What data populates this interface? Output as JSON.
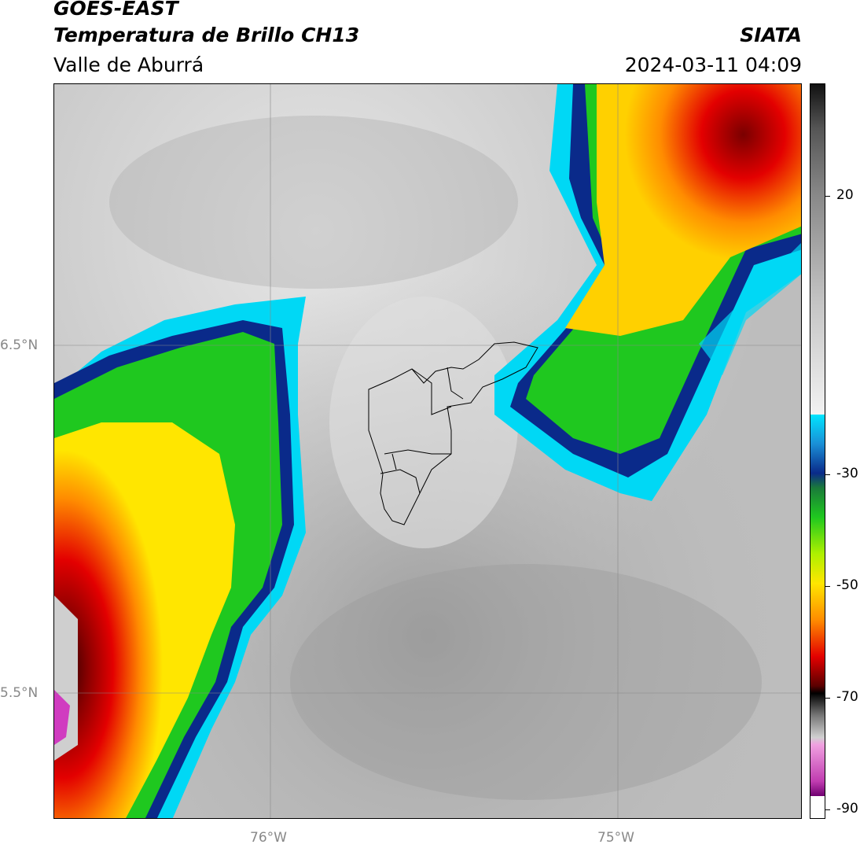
{
  "header": {
    "satellite": "GOES-EAST",
    "product": "Temperatura de Brillo CH13",
    "region": "Valle de Aburrá",
    "org": "SIATA",
    "datetime": "2024-03-11 04:09"
  },
  "axes": {
    "lat_ticks": [
      {
        "label": "6.5°N"
      },
      {
        "label": "5.5°N"
      }
    ],
    "lon_ticks": [
      {
        "label": "76°W"
      },
      {
        "label": "75°W"
      }
    ]
  },
  "colorbar": {
    "unit": "",
    "ticks": [
      "20",
      "-30",
      "-50",
      "-70",
      "-90"
    ],
    "colors": {
      "warm_gray": "#bdbdbd",
      "cyan": "#00e5ff",
      "blue": "#0a2a8a",
      "green": "#1fc81f",
      "yellow": "#ffe600",
      "orange": "#ff8c00",
      "red": "#e30000",
      "darkred": "#5a0000",
      "magenta": "#d03cc0"
    }
  }
}
